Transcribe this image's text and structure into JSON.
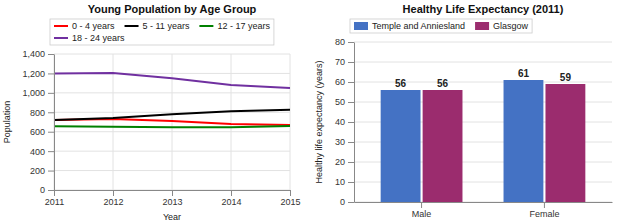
{
  "chart_data": [
    {
      "type": "line",
      "title": "Young Population by Age Group",
      "xlabel": "Year",
      "ylabel": "Population",
      "x": [
        2011,
        2012,
        2013,
        2014,
        2015
      ],
      "series": [
        {
          "name": "0 - 4 years",
          "color": "#ff0000",
          "values": [
            720,
            730,
            710,
            680,
            670
          ]
        },
        {
          "name": "5 - 11 years",
          "color": "#000000",
          "values": [
            720,
            740,
            780,
            810,
            825
          ]
        },
        {
          "name": "12 - 17 years",
          "color": "#008000",
          "values": [
            655,
            650,
            645,
            645,
            660
          ]
        },
        {
          "name": "18 - 24 years",
          "color": "#7030a0",
          "values": [
            1200,
            1205,
            1150,
            1080,
            1050
          ]
        }
      ],
      "xlim": [
        2011,
        2015
      ],
      "xticks": [
        2011,
        2012,
        2013,
        2014,
        2015
      ],
      "ylim": [
        0,
        1400
      ],
      "yticks": [
        0,
        200,
        400,
        600,
        800,
        {
          "value": 1000,
          "label": "1,000"
        },
        {
          "value": 1200,
          "label": "1,200"
        },
        {
          "value": 1400,
          "label": "1,400"
        }
      ],
      "grid": true,
      "legend": "top"
    },
    {
      "type": "bar",
      "title": "Healthy Life Expectancy (2011)",
      "ylabel": "Healthy life expectancy (years)",
      "categories": [
        "Male",
        "Female"
      ],
      "series": [
        {
          "name": "Temple and Anniesland",
          "color": "#4472c4",
          "values": [
            56,
            61
          ]
        },
        {
          "name": "Glasgow",
          "color": "#9b2c6e",
          "values": [
            56,
            59
          ]
        }
      ],
      "ylim": [
        0,
        80
      ],
      "yticks": [
        0,
        10,
        20,
        30,
        40,
        50,
        60,
        70,
        80
      ],
      "grid": "y",
      "data_labels": true,
      "legend": "top"
    }
  ]
}
